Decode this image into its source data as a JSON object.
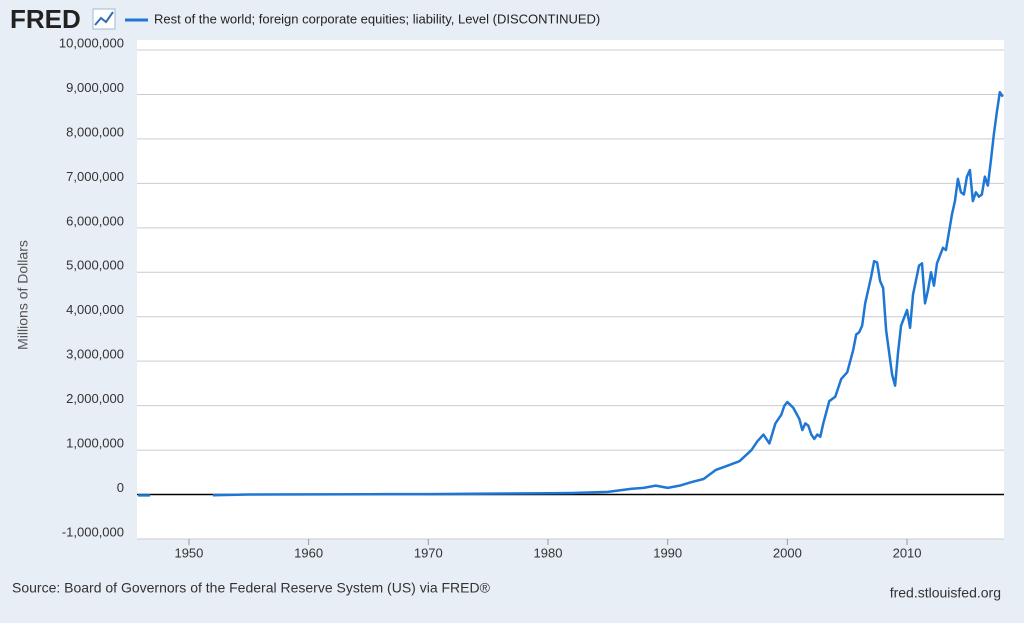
{
  "chart_data": {
    "type": "line",
    "brand": "FRED",
    "title": "Rest of the world; foreign corporate equities; liability, Level (DISCONTINUED)",
    "ylabel": "Millions of Dollars",
    "source": "Source: Board of Governors of the Federal Reserve System (US) via FRED®",
    "site": "fred.stlouisfed.org",
    "xlim": [
      1945.66,
      2018.1
    ],
    "xticks": [
      1950,
      1960,
      1970,
      1980,
      1990,
      2000,
      2010
    ],
    "ylim": [
      -1000000,
      10000000
    ],
    "yticks": [
      {
        "value": -1000000,
        "label": "-1,000,000"
      },
      0,
      {
        "value": 1000000,
        "label": "1,000,000"
      },
      {
        "value": 2000000,
        "label": "2,000,000"
      },
      {
        "value": 3000000,
        "label": "3,000,000"
      },
      {
        "value": 4000000,
        "label": "4,000,000"
      },
      {
        "value": 5000000,
        "label": "5,000,000"
      },
      {
        "value": 6000000,
        "label": "6,000,000"
      },
      {
        "value": 7000000,
        "label": "7,000,000"
      },
      {
        "value": 8000000,
        "label": "8,000,000"
      },
      {
        "value": 9000000,
        "label": "9,000,000"
      },
      {
        "value": 10000000,
        "label": "10,000,000"
      }
    ],
    "grid": true,
    "x": [
      1945.75,
      1946.75,
      1947,
      1952,
      1955,
      1960,
      1965,
      1970,
      1975,
      1980,
      1982,
      1985,
      1987,
      1988,
      1989,
      1990,
      1991,
      1992,
      1993,
      1994,
      1995,
      1996,
      1997,
      1997.5,
      1998,
      1998.5,
      1999,
      1999.5,
      1999.75,
      2000,
      2000.5,
      2001,
      2001.25,
      2001.5,
      2001.75,
      2002,
      2002.25,
      2002.5,
      2002.75,
      2003,
      2003.5,
      2004,
      2004.5,
      2005,
      2005.5,
      2005.75,
      2006,
      2006.25,
      2006.5,
      2007,
      2007.25,
      2007.5,
      2007.75,
      2008,
      2008.25,
      2008.75,
      2009,
      2009.25,
      2009.5,
      2010,
      2010.25,
      2010.5,
      2011,
      2011.25,
      2011.5,
      2011.75,
      2012,
      2012.25,
      2012.5,
      2013,
      2013.25,
      2013.75,
      2014,
      2014.25,
      2014.5,
      2014.75,
      2015,
      2015.25,
      2015.5,
      2015.75,
      2016,
      2016.25,
      2016.5,
      2016.75,
      2017,
      2017.25,
      2017.5,
      2017.75,
      2018
    ],
    "series": [
      {
        "name": "Rest of the world; foreign corporate equities; liability, Level (DISCONTINUED)",
        "color": "#1f77d4",
        "values": [
          -20000,
          -20000,
          null,
          -15000,
          0,
          5000,
          8000,
          10000,
          20000,
          30000,
          35000,
          60000,
          130000,
          150000,
          200000,
          150000,
          200000,
          280000,
          350000,
          550000,
          650000,
          750000,
          1000000,
          1200000,
          1350000,
          1150000,
          1600000,
          1800000,
          2000000,
          2080000,
          1950000,
          1700000,
          1450000,
          1600000,
          1550000,
          1350000,
          1250000,
          1350000,
          1300000,
          1600000,
          2100000,
          2200000,
          2600000,
          2750000,
          3250000,
          3600000,
          3650000,
          3800000,
          4300000,
          4900000,
          5250000,
          5220000,
          4800000,
          4650000,
          3700000,
          2700000,
          2450000,
          3200000,
          3800000,
          4150000,
          3750000,
          4500000,
          5150000,
          5200000,
          4300000,
          4600000,
          5000000,
          4700000,
          5200000,
          5550000,
          5500000,
          6300000,
          6600000,
          7100000,
          6800000,
          6750000,
          7150000,
          7300000,
          6600000,
          6800000,
          6700000,
          6750000,
          7150000,
          6950000,
          7500000,
          8100000,
          8600000,
          9050000,
          8950000
        ]
      }
    ]
  }
}
